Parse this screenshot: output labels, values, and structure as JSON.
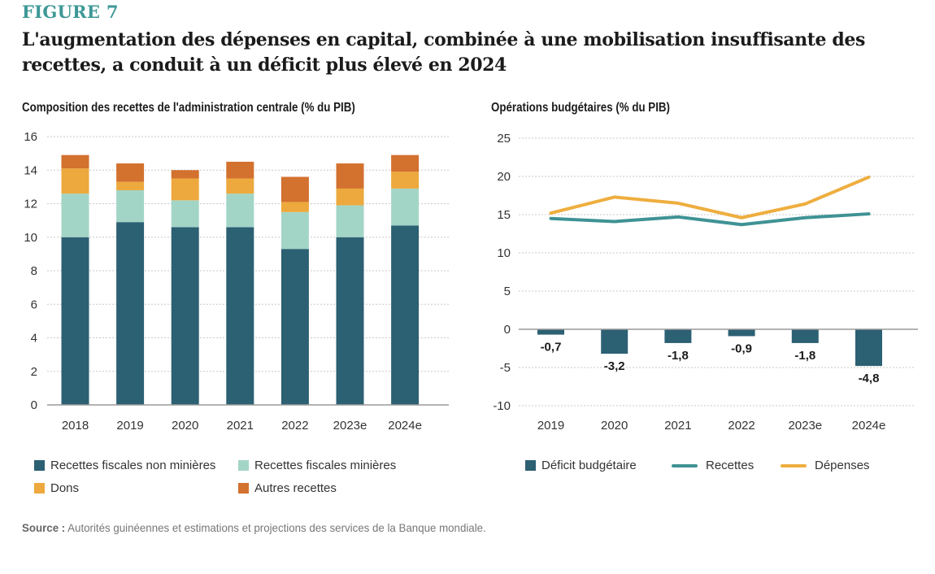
{
  "figure_label": "FIGURE 7",
  "title": "L'augmentation des dépenses en capital, combinée à une mobilisation insuffisante des recettes, a conduit à un déficit plus élevé en 2024",
  "source_label": "Source :",
  "source_text": " Autorités guinéennes et estimations et projections des services de la Banque mondiale.",
  "colors": {
    "non_mining": "#2c6073",
    "mining": "#a3d5c6",
    "grants": "#eda93d",
    "other": "#d3712f",
    "deficit": "#2c6073",
    "revenue_line": "#3f9295",
    "expenditure_line": "#eeae3f",
    "figure_label": "#3d9896"
  },
  "chart_data": [
    {
      "type": "bar",
      "stacked": true,
      "title": "Composition des recettes de l'administration centrale (% du PIB)",
      "xlabel": "",
      "ylabel": "",
      "categories": [
        "2018",
        "2019",
        "2020",
        "2021",
        "2022",
        "2023e",
        "2024e"
      ],
      "yticks": [
        "0",
        "2",
        "4",
        "6",
        "8",
        "10",
        "12",
        "14",
        "16"
      ],
      "ylim": [
        0,
        16
      ],
      "grid": true,
      "legend_position": "bottom",
      "series": [
        {
          "name": "Recettes fiscales non minières",
          "color_key": "non_mining",
          "values": [
            10.0,
            10.9,
            10.6,
            10.6,
            9.3,
            10.0,
            10.7
          ]
        },
        {
          "name": "Recettes fiscales minières",
          "color_key": "mining",
          "values": [
            2.6,
            1.9,
            1.6,
            2.0,
            2.2,
            1.9,
            2.2
          ]
        },
        {
          "name": "Dons",
          "color_key": "grants",
          "values": [
            1.5,
            0.5,
            1.3,
            0.9,
            0.6,
            1.0,
            1.0
          ]
        },
        {
          "name": "Autres recettes",
          "color_key": "other",
          "values": [
            0.8,
            1.1,
            0.5,
            1.0,
            1.5,
            1.5,
            1.0
          ]
        }
      ]
    },
    {
      "type": "bar+line",
      "title": "Opérations budgétaires (% du PIB)",
      "xlabel": "",
      "ylabel": "",
      "categories": [
        "2019",
        "2020",
        "2021",
        "2022",
        "2023e",
        "2024e"
      ],
      "yticks": [
        "-10",
        "-5",
        "0",
        "5",
        "10",
        "15",
        "20",
        "25"
      ],
      "ylim": [
        -10,
        25
      ],
      "grid": true,
      "legend_position": "bottom",
      "bars": {
        "name": "Déficit budgétaire",
        "color_key": "deficit",
        "values": [
          -0.7,
          -3.2,
          -1.8,
          -0.9,
          -1.8,
          -4.8
        ],
        "labels": [
          "-0,7",
          "-3,2",
          "-1,8",
          "-0,9",
          "-1,8",
          "-4,8"
        ]
      },
      "lines": [
        {
          "name": "Recettes",
          "color_key": "revenue_line",
          "values": [
            14.5,
            14.1,
            14.7,
            13.7,
            14.6,
            15.1
          ]
        },
        {
          "name": "Dépenses",
          "color_key": "expenditure_line",
          "values": [
            15.2,
            17.3,
            16.5,
            14.6,
            16.4,
            19.9
          ]
        }
      ]
    }
  ]
}
